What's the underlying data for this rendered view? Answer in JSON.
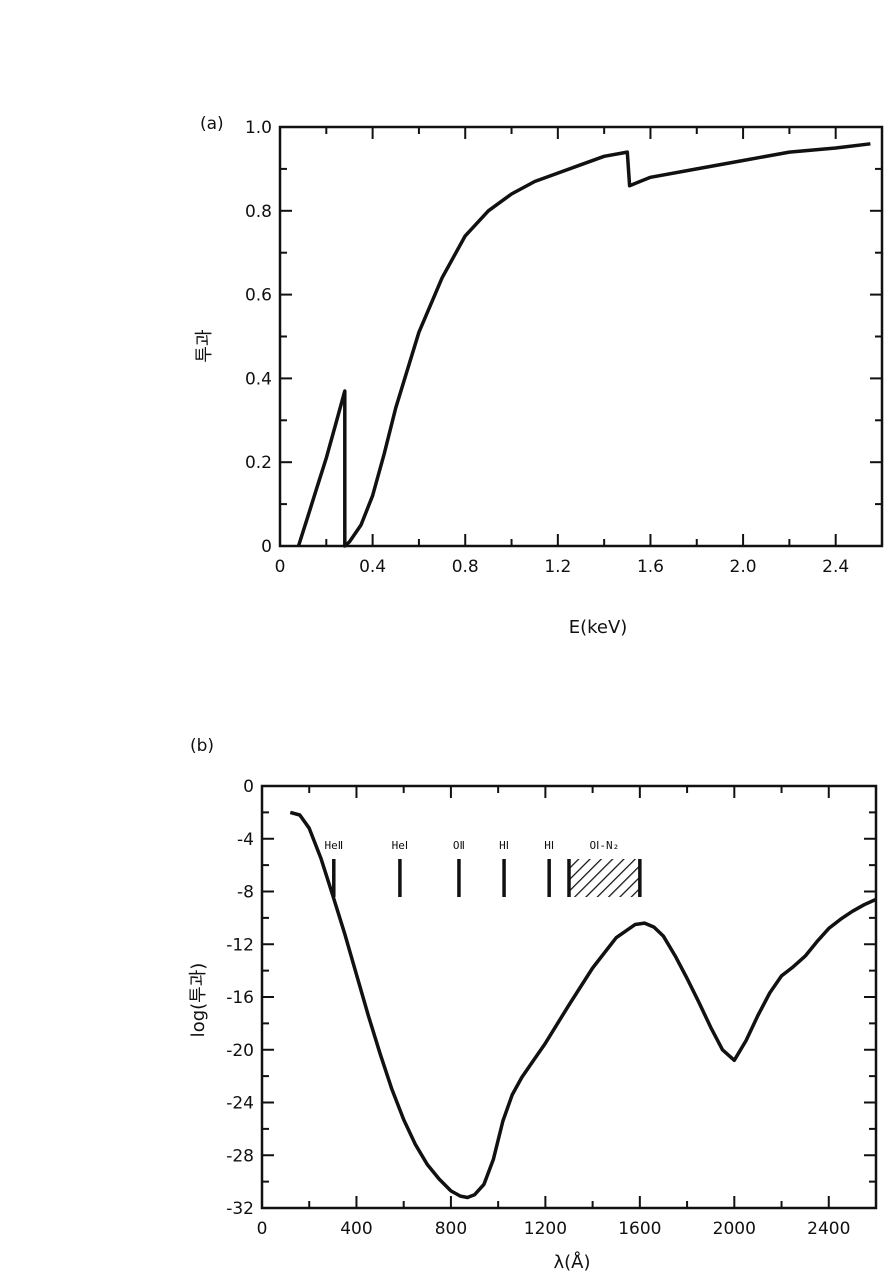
{
  "chart_data": [
    {
      "type": "line",
      "panel_label": "(a)",
      "xlabel": "E(keV)",
      "ylabel": "투과",
      "xlim": [
        0,
        2.6
      ],
      "ylim": [
        0,
        1.0
      ],
      "x_ticks": [
        "0",
        "0.4",
        "0.8",
        "1.2",
        "1.6",
        "2.0",
        "2.4"
      ],
      "y_ticks": [
        "0",
        "0.2",
        "0.4",
        "0.6",
        "0.8",
        "1.0"
      ],
      "grid": false,
      "series": [
        {
          "x": [
            0.08,
            0.12,
            0.16,
            0.2,
            0.24,
            0.27,
            0.28,
            0.28,
            0.3,
            0.35,
            0.4,
            0.45,
            0.5,
            0.6,
            0.7,
            0.8,
            0.9,
            1.0,
            1.1,
            1.2,
            1.3,
            1.4,
            1.5,
            1.51,
            1.6,
            1.8,
            2.0,
            2.2,
            2.4,
            2.55
          ],
          "y": [
            0.0,
            0.07,
            0.14,
            0.21,
            0.29,
            0.35,
            0.37,
            0.0,
            0.01,
            0.05,
            0.12,
            0.22,
            0.33,
            0.51,
            0.64,
            0.74,
            0.8,
            0.84,
            0.87,
            0.89,
            0.91,
            0.93,
            0.94,
            0.86,
            0.88,
            0.9,
            0.92,
            0.94,
            0.95,
            0.96
          ]
        }
      ]
    },
    {
      "type": "line",
      "panel_label": "(b)",
      "xlabel": "λ(Å)",
      "ylabel": "log(투과)",
      "xlim": [
        0,
        2600
      ],
      "ylim": [
        -32,
        0
      ],
      "x_ticks": [
        "0",
        "400",
        "800",
        "1200",
        "1600",
        "2000",
        "2400"
      ],
      "y_ticks": [
        "0",
        "-4",
        "-8",
        "-12",
        "-16",
        "-20",
        "-24",
        "-28",
        "-32"
      ],
      "grid": false,
      "series": [
        {
          "x": [
            120,
            160,
            200,
            250,
            300,
            350,
            400,
            450,
            500,
            550,
            600,
            650,
            700,
            750,
            800,
            840,
            870,
            900,
            940,
            980,
            1020,
            1060,
            1100,
            1150,
            1200,
            1300,
            1400,
            1500,
            1580,
            1620,
            1660,
            1700,
            1750,
            1800,
            1850,
            1900,
            1950,
            2000,
            2050,
            2100,
            2150,
            2200,
            2250,
            2300,
            2350,
            2400,
            2450,
            2500,
            2550,
            2600
          ],
          "y": [
            -2,
            -2.2,
            -3.2,
            -5.5,
            -8.3,
            -11.2,
            -14.3,
            -17.4,
            -20.3,
            -23.0,
            -25.3,
            -27.2,
            -28.7,
            -29.8,
            -30.7,
            -31.1,
            -31.2,
            -31.0,
            -30.2,
            -28.3,
            -25.4,
            -23.4,
            -22.1,
            -20.8,
            -19.5,
            -16.6,
            -13.8,
            -11.5,
            -10.5,
            -10.4,
            -10.7,
            -11.4,
            -12.9,
            -14.6,
            -16.4,
            -18.3,
            -20.0,
            -20.8,
            -19.3,
            -17.4,
            -15.7,
            -14.4,
            -13.7,
            -12.9,
            -11.8,
            -10.8,
            -10.1,
            -9.5,
            -9.0,
            -8.6
          ]
        }
      ],
      "annotations": [
        {
          "label": "HeⅡ",
          "x": 304
        },
        {
          "label": "HeⅠ",
          "x": 584
        },
        {
          "label": "OⅡ",
          "x": 834
        },
        {
          "label": "HⅠ",
          "x": 1025
        },
        {
          "label": "HⅠ",
          "x": 1216
        },
        {
          "label": "OⅠ-N₂",
          "x_start": 1300,
          "x_end": 1600
        }
      ]
    }
  ]
}
